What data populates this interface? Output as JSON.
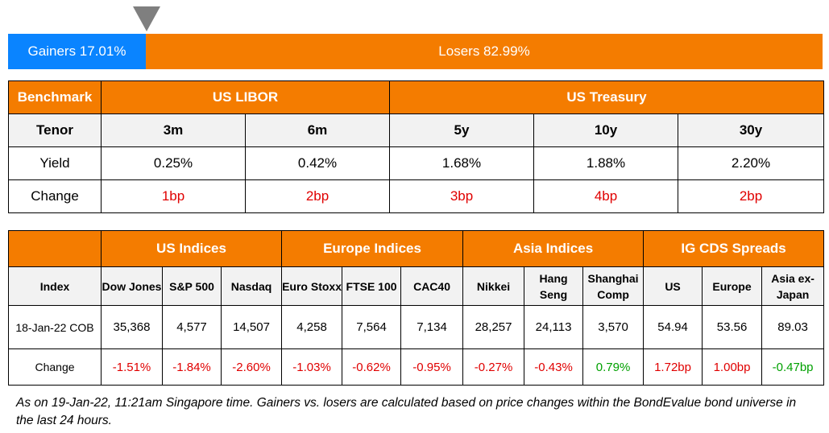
{
  "market_bar": {
    "gainers_label": "Gainers 17.01%",
    "losers_label": "Losers 82.99%",
    "gainers_pct": 17.01,
    "losers_pct": 82.99,
    "colors": {
      "gainers": "#0a84ff",
      "losers": "#f47c00",
      "marker": "#7f7f7f"
    }
  },
  "rates": {
    "benchmark_label": "Benchmark",
    "groups": [
      "US LIBOR",
      "US Treasury"
    ],
    "tenor_label": "Tenor",
    "tenors": [
      "3m",
      "6m",
      "5y",
      "10y",
      "30y"
    ],
    "yield_label": "Yield",
    "yields": [
      "0.25%",
      "0.42%",
      "1.68%",
      "1.88%",
      "2.20%"
    ],
    "change_label": "Change",
    "changes": [
      "1bp",
      "2bp",
      "3bp",
      "4bp",
      "2bp"
    ]
  },
  "indices": {
    "groups": [
      "US Indices",
      "Europe Indices",
      "Asia Indices",
      "IG CDS Spreads"
    ],
    "index_label": "Index",
    "columns": [
      "Dow Jones",
      "S&P 500",
      "Nasdaq",
      "Euro Stoxx",
      "FTSE 100",
      "CAC40",
      "Nikkei",
      "Hang Seng",
      "Shanghai Comp",
      "US",
      "Europe",
      "Asia ex-Japan"
    ],
    "date_label": "18-Jan-22 COB",
    "values": [
      "35,368",
      "4,577",
      "14,507",
      "4,258",
      "7,564",
      "7,134",
      "28,257",
      "24,113",
      "3,570",
      "54.94",
      "53.56",
      "89.03"
    ],
    "change_label": "Change",
    "changes": [
      "-1.51%",
      "-1.84%",
      "-2.60%",
      "-1.03%",
      "-0.62%",
      "-0.95%",
      "-0.27%",
      "-0.43%",
      "0.79%",
      "1.72bp",
      "1.00bp",
      "-0.47bp"
    ],
    "colors": {
      "header": "#f47c00",
      "subheader": "#f2f2f2",
      "negative": "#e00000",
      "positive": "#00a000"
    }
  },
  "footnote": "As on 19-Jan-22, 11:21am Singapore time. Gainers vs. losers are calculated based on price changes within the BondEvalue bond universe in the last 24 hours."
}
